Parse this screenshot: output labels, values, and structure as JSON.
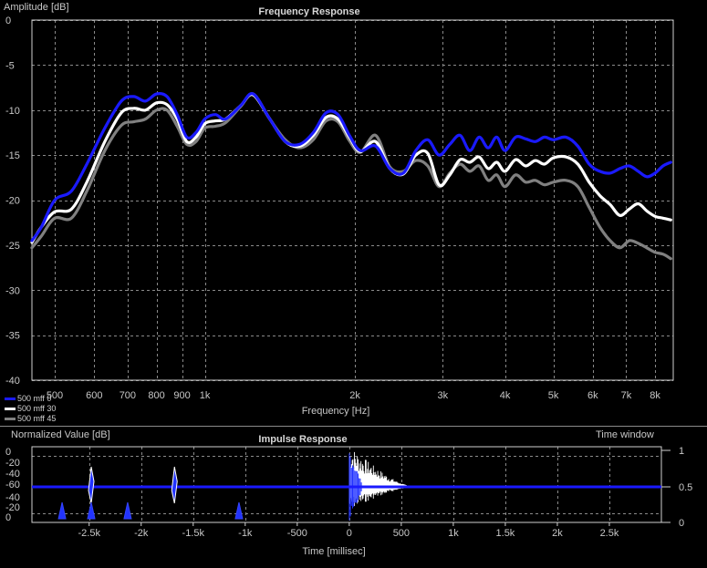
{
  "chart_data": [
    {
      "type": "line",
      "title": "Frequency Response",
      "ylabel": "Amplitude [dB]",
      "xlabel": "Frequency [Hz]",
      "xscale": "log",
      "xlim": [
        450,
        8700
      ],
      "ylim": [
        -40,
        0
      ],
      "grid": true,
      "xticks": [
        {
          "v": 500,
          "label": "500"
        },
        {
          "v": 600,
          "label": "600"
        },
        {
          "v": 700,
          "label": "700"
        },
        {
          "v": 800,
          "label": "800"
        },
        {
          "v": 900,
          "label": "900"
        },
        {
          "v": 1000,
          "label": "1k"
        },
        {
          "v": 2000,
          "label": "2k"
        },
        {
          "v": 3000,
          "label": "3k"
        },
        {
          "v": 4000,
          "label": "4k"
        },
        {
          "v": 5000,
          "label": "5k"
        },
        {
          "v": 6000,
          "label": "6k"
        },
        {
          "v": 7000,
          "label": "7k"
        },
        {
          "v": 8000,
          "label": "8k"
        }
      ],
      "yticks": [
        {
          "v": 0,
          "label": "0"
        },
        {
          "v": -5,
          "label": "-5"
        },
        {
          "v": -10,
          "label": "-10"
        },
        {
          "v": -15,
          "label": "-15"
        },
        {
          "v": -20,
          "label": "-20"
        },
        {
          "v": -25,
          "label": "-25"
        },
        {
          "v": -30,
          "label": "-30"
        },
        {
          "v": -35,
          "label": "-35"
        },
        {
          "v": -40,
          "label": "-40"
        }
      ],
      "legend": "bottom-left",
      "series": [
        {
          "name": "500 mff 0",
          "color": "#1a1aff",
          "x": [
            450,
            470,
            500,
            540,
            580,
            630,
            680,
            720,
            760,
            800,
            840,
            880,
            920,
            960,
            1000,
            1050,
            1100,
            1180,
            1250,
            1350,
            1450,
            1550,
            1650,
            1750,
            1850,
            1950,
            2050,
            2200,
            2350,
            2500,
            2650,
            2800,
            2950,
            3100,
            3250,
            3400,
            3550,
            3700,
            3850,
            4000,
            4200,
            4400,
            4600,
            4800,
            5000,
            5300,
            5600,
            5900,
            6200,
            6500,
            6800,
            7100,
            7400,
            7700,
            8000,
            8300,
            8600
          ],
          "y": [
            -24.5,
            -23,
            -20,
            -19,
            -16,
            -12,
            -9,
            -8.5,
            -9,
            -8.2,
            -8.5,
            -10.5,
            -13,
            -12.5,
            -11,
            -10.5,
            -11,
            -9.5,
            -8.2,
            -11,
            -13.5,
            -13.8,
            -12.5,
            -10.3,
            -10.5,
            -12.8,
            -14.5,
            -14,
            -16.5,
            -17,
            -14.5,
            -13.3,
            -15,
            -13.8,
            -12.8,
            -14.5,
            -13,
            -14.2,
            -13,
            -14.5,
            -13,
            -13.2,
            -13.5,
            -13,
            -13.3,
            -13,
            -14,
            -16,
            -16.8,
            -17,
            -16.5,
            -16.2,
            -16.8,
            -17.4,
            -17,
            -16.2,
            -15.8
          ]
        },
        {
          "name": "500 mff 30",
          "color": "#ffffff",
          "x": [
            450,
            470,
            500,
            540,
            580,
            630,
            680,
            720,
            760,
            800,
            840,
            880,
            920,
            960,
            1000,
            1050,
            1100,
            1180,
            1250,
            1350,
            1450,
            1550,
            1650,
            1750,
            1850,
            1950,
            2050,
            2200,
            2350,
            2500,
            2650,
            2800,
            2950,
            3100,
            3250,
            3400,
            3550,
            3700,
            3850,
            4000,
            4200,
            4400,
            4600,
            4800,
            5000,
            5300,
            5600,
            5900,
            6200,
            6500,
            6800,
            7100,
            7400,
            7700,
            8000,
            8300,
            8600
          ],
          "y": [
            -24.7,
            -23,
            -21.3,
            -21,
            -18,
            -13.5,
            -10.3,
            -9.8,
            -10,
            -9.2,
            -9.4,
            -11,
            -13.5,
            -13,
            -11.5,
            -11.2,
            -11,
            -9.5,
            -8.3,
            -11,
            -13.5,
            -14,
            -12.8,
            -10.8,
            -11,
            -13,
            -14.6,
            -13.5,
            -16.5,
            -17.1,
            -15,
            -14.8,
            -18.3,
            -17.2,
            -15.5,
            -15.8,
            -15.2,
            -16.5,
            -15.8,
            -16.8,
            -15.5,
            -16.2,
            -15.6,
            -16,
            -15.3,
            -15.2,
            -16,
            -18,
            -19.5,
            -20.5,
            -21.7,
            -21,
            -20.4,
            -21.2,
            -21.8,
            -22,
            -22.2
          ]
        },
        {
          "name": "500 mff 45",
          "color": "#808080",
          "x": [
            450,
            470,
            500,
            540,
            580,
            630,
            680,
            720,
            760,
            800,
            840,
            880,
            920,
            960,
            1000,
            1050,
            1100,
            1180,
            1250,
            1350,
            1450,
            1550,
            1650,
            1750,
            1850,
            1950,
            2050,
            2200,
            2350,
            2500,
            2650,
            2800,
            2950,
            3100,
            3250,
            3400,
            3550,
            3700,
            3850,
            4000,
            4200,
            4400,
            4600,
            4800,
            5000,
            5300,
            5600,
            5900,
            6200,
            6500,
            6800,
            7100,
            7400,
            7700,
            8000,
            8300,
            8600
          ],
          "y": [
            -25.3,
            -24,
            -22,
            -22,
            -19,
            -14.5,
            -11.7,
            -11.3,
            -11,
            -10,
            -10,
            -11.8,
            -13.8,
            -13.5,
            -12,
            -11.8,
            -11.4,
            -9.6,
            -8.2,
            -11,
            -13.3,
            -14.2,
            -13.3,
            -11.2,
            -11.3,
            -13.4,
            -14.7,
            -12.8,
            -16.3,
            -16.8,
            -15.6,
            -16.2,
            -18.5,
            -17,
            -16,
            -16.8,
            -16.2,
            -17.8,
            -17.2,
            -18.5,
            -17.2,
            -18,
            -17.8,
            -18.3,
            -18,
            -17.8,
            -18.5,
            -20.8,
            -23,
            -24.5,
            -25.3,
            -24.5,
            -24.8,
            -25.3,
            -25.8,
            -26,
            -26.5
          ]
        }
      ]
    },
    {
      "type": "line",
      "title": "Impulse Response",
      "ylabel": "Normalized Value [dB]",
      "xlabel": "Time [millisec]",
      "right_axis_label": "Time window",
      "xlim": [
        -3050,
        3000
      ],
      "xticks": [
        {
          "v": -2500,
          "label": "-2.5k"
        },
        {
          "v": -2000,
          "label": "-2k"
        },
        {
          "v": -1500,
          "label": "-1.5k"
        },
        {
          "v": -1000,
          "label": "-1k"
        },
        {
          "v": -500,
          "label": "-500"
        },
        {
          "v": 0,
          "label": "0"
        },
        {
          "v": 500,
          "label": "500"
        },
        {
          "v": 1000,
          "label": "1k"
        },
        {
          "v": 1500,
          "label": "1.5k"
        },
        {
          "v": 2000,
          "label": "2k"
        },
        {
          "v": 2500,
          "label": "2.5k"
        }
      ],
      "yticks_left_top": [
        "0",
        "-20",
        "-40",
        "-60"
      ],
      "yticks_left_bottom": [
        "-40",
        "-20",
        "0"
      ],
      "yticks_right": [
        "1",
        "0.5",
        "0"
      ],
      "grid": true,
      "baseline_color": "#1a1aff",
      "events": [
        {
          "t": -2760,
          "kind": "small-blue"
        },
        {
          "t": -2480,
          "kind": "spike"
        },
        {
          "t": -2480,
          "kind": "small-blue"
        },
        {
          "t": -2130,
          "kind": "small-blue"
        },
        {
          "t": -1680,
          "kind": "spike"
        },
        {
          "t": -1060,
          "kind": "small-blue"
        },
        {
          "t": 0,
          "kind": "main-burst",
          "duration": 550
        }
      ]
    }
  ]
}
